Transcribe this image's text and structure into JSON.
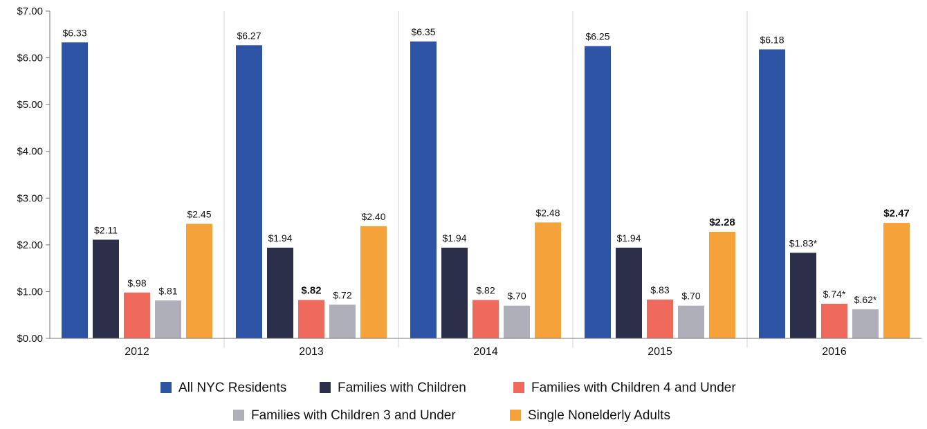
{
  "chart_data": {
    "type": "bar",
    "title": "",
    "xlabel": "",
    "ylabel": "",
    "ylim": [
      0,
      7
    ],
    "y_ticks": [
      "$0.00",
      "$1.00",
      "$2.00",
      "$3.00",
      "$4.00",
      "$5.00",
      "$6.00",
      "$7.00"
    ],
    "categories": [
      "2012",
      "2013",
      "2014",
      "2015",
      "2016"
    ],
    "series": [
      {
        "name": "All NYC Residents",
        "color": "#2E55A5",
        "values": [
          6.33,
          6.27,
          6.35,
          6.25,
          6.18
        ],
        "labels": [
          "$6.33",
          "$6.27",
          "$6.35",
          "$6.25",
          "$6.18"
        ],
        "bold": [
          false,
          false,
          false,
          false,
          false
        ]
      },
      {
        "name": "Families with Children",
        "color": "#2C2F4A",
        "values": [
          2.11,
          1.94,
          1.94,
          1.94,
          1.83
        ],
        "labels": [
          "$2.11",
          "$1.94",
          "$1.94",
          "$1.94",
          "$1.83*"
        ],
        "bold": [
          false,
          false,
          false,
          false,
          false
        ]
      },
      {
        "name": "Families with Children 4 and Under",
        "color": "#EF6A5C",
        "values": [
          0.98,
          0.82,
          0.82,
          0.83,
          0.74
        ],
        "labels": [
          "$.98",
          "$.82",
          "$.82",
          "$.83",
          "$.74*"
        ],
        "bold": [
          false,
          true,
          false,
          false,
          false
        ]
      },
      {
        "name": "Families with Children 3 and Under",
        "color": "#AEAFB8",
        "values": [
          0.81,
          0.72,
          0.7,
          0.7,
          0.62
        ],
        "labels": [
          "$.81",
          "$.72",
          "$.70",
          "$.70",
          "$.62*"
        ],
        "bold": [
          false,
          false,
          false,
          false,
          false
        ]
      },
      {
        "name": "Single Nonelderly Adults",
        "color": "#F6A23A",
        "values": [
          2.45,
          2.4,
          2.48,
          2.28,
          2.47
        ],
        "labels": [
          "$2.45",
          "$2.40",
          "$2.48",
          "$2.28",
          "$2.47"
        ],
        "bold": [
          false,
          false,
          false,
          true,
          true
        ]
      }
    ],
    "grid": "vertical separators between categories",
    "legend_position": "bottom"
  }
}
